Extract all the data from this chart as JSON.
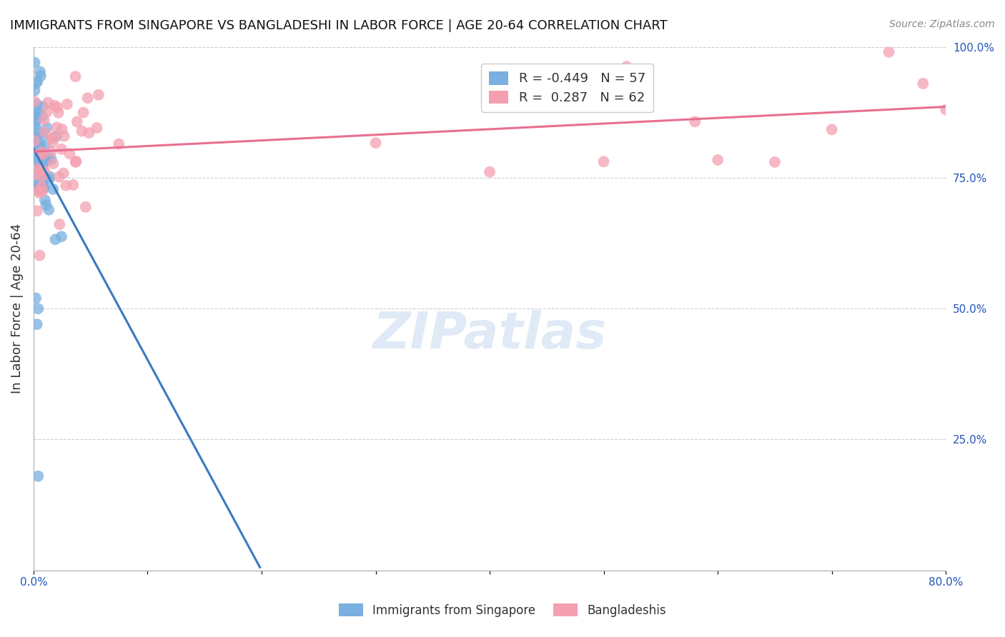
{
  "title": "IMMIGRANTS FROM SINGAPORE VS BANGLADESHI IN LABOR FORCE | AGE 20-64 CORRELATION CHART",
  "source": "Source: ZipAtlas.com",
  "ylabel": "In Labor Force | Age 20-64",
  "xlim": [
    0.0,
    0.8
  ],
  "ylim": [
    0.0,
    1.0
  ],
  "xtick_positions": [
    0.0,
    0.1,
    0.2,
    0.3,
    0.4,
    0.5,
    0.6,
    0.7,
    0.8
  ],
  "xticklabels": [
    "0.0%",
    "",
    "",
    "",
    "",
    "",
    "",
    "",
    "80.0%"
  ],
  "yticks_right": [
    0.25,
    0.5,
    0.75,
    1.0
  ],
  "ytick_right_labels": [
    "25.0%",
    "50.0%",
    "75.0%",
    "100.0%"
  ],
  "singapore_color": "#7aafdf",
  "bangladesh_color": "#f4a0b0",
  "singapore_R": -0.449,
  "singapore_N": 57,
  "bangladesh_R": 0.287,
  "bangladesh_N": 62,
  "watermark": "ZIPatlas",
  "sg_trend_color_solid": "#3a7abf",
  "sg_trend_color_dash": "#99c4e8",
  "bd_trend_color": "#e87090",
  "grid_color": "#cccccc",
  "tick_label_color": "#2255bb",
  "title_color": "#111111",
  "source_color": "#888888",
  "ylabel_color": "#333333",
  "legend_label_color": "#333333",
  "watermark_color": "#c8d8f0"
}
